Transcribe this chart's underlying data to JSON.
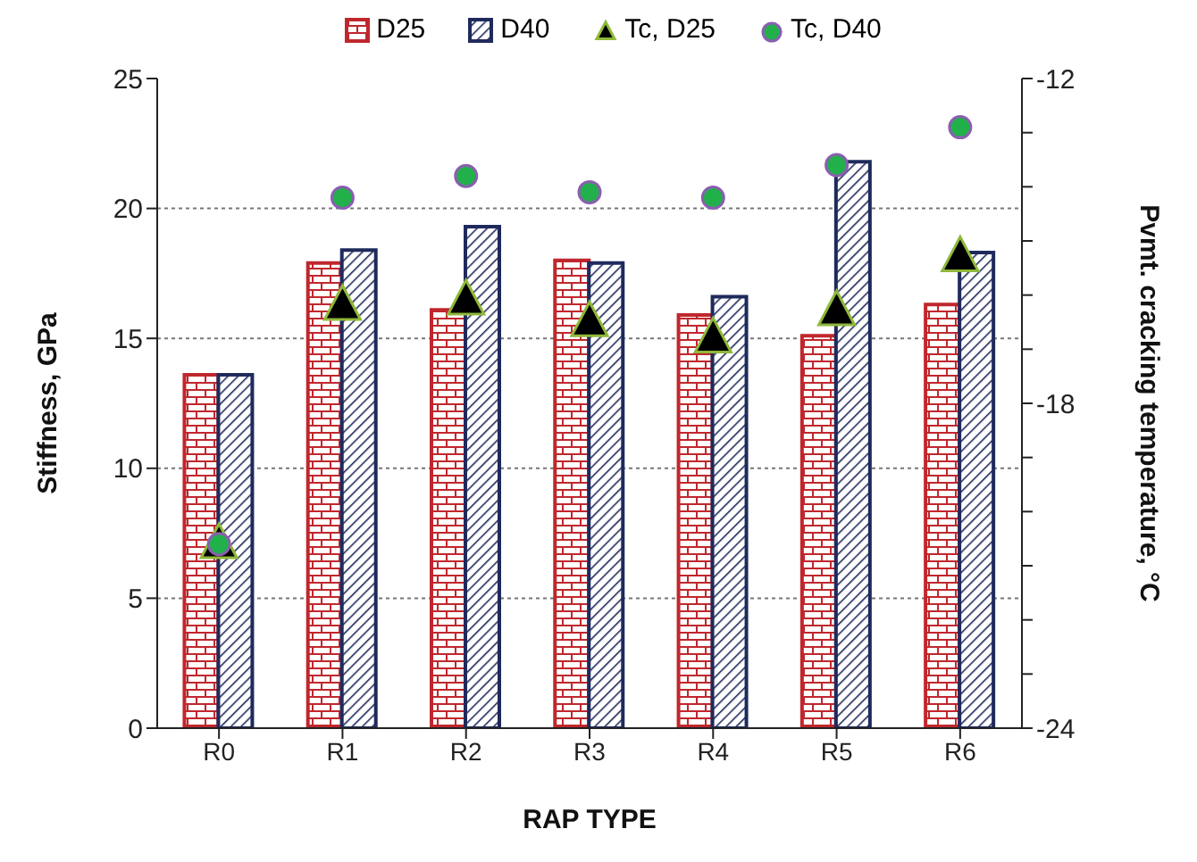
{
  "chart_data": {
    "type": "bar",
    "xlabel": "RAP TYPE",
    "ylabel": "Stiffness, GPa",
    "y2label": "Pvmt. cracking temperature, °C",
    "categories": [
      "R0",
      "R1",
      "R2",
      "R3",
      "R4",
      "R5",
      "R6"
    ],
    "series": [
      {
        "name": "D25",
        "color": "#c0272d",
        "values": [
          13.6,
          17.9,
          16.1,
          18.0,
          15.9,
          15.1,
          16.3
        ]
      },
      {
        "name": "D40",
        "color": "#1f2a5c",
        "values": [
          13.6,
          18.4,
          19.3,
          17.9,
          16.6,
          21.8,
          18.3
        ]
      },
      {
        "name": "Tc, D25",
        "type": "scatter",
        "axis": "y2",
        "marker": "triangle",
        "color": "#000000",
        "values": [
          -20.6,
          -16.2,
          -16.1,
          -16.5,
          -16.8,
          -16.3,
          -15.3
        ]
      },
      {
        "name": "Tc, D40",
        "type": "scatter",
        "axis": "y2",
        "marker": "circle",
        "color": "#22b04b",
        "values": [
          -20.6,
          -14.2,
          -13.8,
          -14.1,
          -14.2,
          -13.6,
          -12.9
        ]
      }
    ],
    "ylim": [
      0,
      25
    ],
    "yticks": [
      0,
      5,
      10,
      15,
      20,
      25
    ],
    "y2lim": [
      -24,
      -12
    ],
    "y2ticks": [
      -24,
      {
        "value": -23,
        "label": null
      },
      {
        "value": -22,
        "label": null
      },
      {
        "value": -21,
        "label": null
      },
      {
        "value": -20,
        "label": null
      },
      {
        "value": -19,
        "label": null
      },
      -18,
      {
        "value": -17,
        "label": null
      },
      {
        "value": -16,
        "label": null
      },
      {
        "value": -15,
        "label": null
      },
      {
        "value": -14,
        "label": null
      },
      {
        "value": -13,
        "label": null
      },
      -12
    ],
    "grid": "y",
    "legend": "top"
  }
}
